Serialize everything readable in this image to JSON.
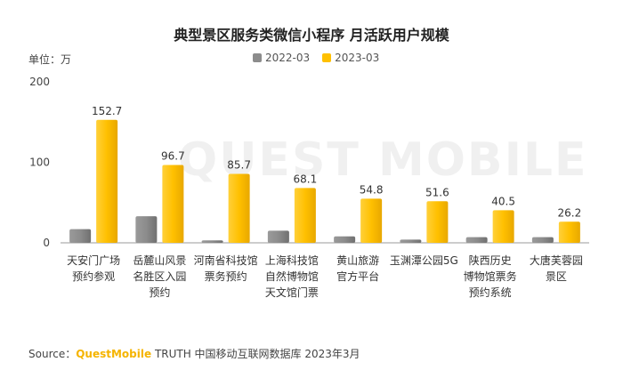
{
  "chart_data": {
    "type": "bar",
    "title": "典型景区服务类微信小程序 月活跃用户规模",
    "unit_label": "单位：万",
    "categories": [
      [
        "天安门广场",
        "预约参观"
      ],
      [
        "岳麓山风景",
        "名胜区入园",
        "预约"
      ],
      [
        "河南省科技馆",
        "票务预约"
      ],
      [
        "上海科技馆",
        "自然博物馆",
        "天文馆门票"
      ],
      [
        "黄山旅游",
        "官方平台"
      ],
      [
        "玉渊潭公园5G"
      ],
      [
        "陕西历史",
        "博物馆票务",
        "预约系统"
      ],
      [
        "大唐芙蓉园",
        "景区"
      ]
    ],
    "series": [
      {
        "name": "2022-03",
        "color": "#8c8c8c",
        "values": [
          17,
          33,
          3,
          15,
          8,
          4,
          7,
          7
        ]
      },
      {
        "name": "2023-03",
        "color": "#ffc000",
        "values": [
          152.7,
          96.7,
          85.7,
          68.1,
          54.8,
          51.6,
          40.5,
          26.2
        ]
      }
    ],
    "data_labels": [
      "152.7",
      "96.7",
      "85.7",
      "68.1",
      "54.8",
      "51.6",
      "40.5",
      "26.2"
    ],
    "yticks": [
      "0",
      "100",
      "200"
    ],
    "ylim": [
      0,
      200
    ],
    "grid": false,
    "legend_position": "top-center"
  },
  "watermark": "QUEST MOBILE",
  "source": {
    "prefix": "Source：",
    "brand": "QuestMobile",
    "rest": " TRUTH 中国移动互联网数据库 2023年3月"
  }
}
